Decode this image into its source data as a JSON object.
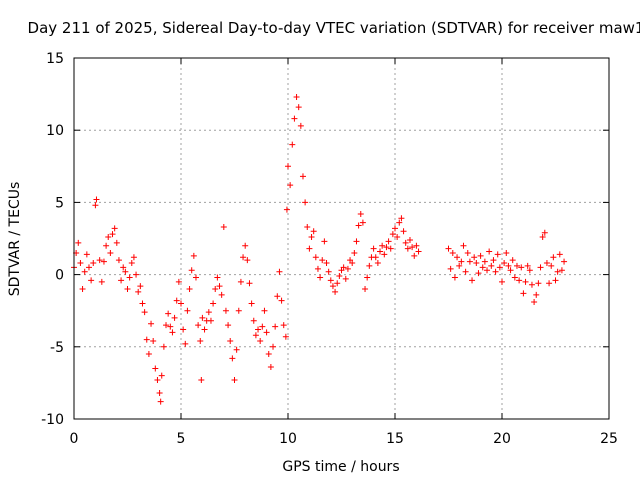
{
  "chart_data": {
    "type": "scatter",
    "title": "Day 211 of 2025, Sidereal Day-to-day VTEC variation (SDTVAR) for receiver maw1",
    "xlabel": "GPS time / hours",
    "ylabel": "SDTVAR / TECUs",
    "xlim": [
      0,
      25
    ],
    "ylim": [
      -10,
      15
    ],
    "x_ticks": [
      0,
      5,
      10,
      15,
      20,
      25
    ],
    "y_ticks": [
      -10,
      -5,
      0,
      5,
      10,
      15
    ],
    "grid": true,
    "marker": "+",
    "color": "#ff0000",
    "series": [
      {
        "name": "maw1",
        "points": [
          [
            0.0,
            0.5
          ],
          [
            0.1,
            1.5
          ],
          [
            0.2,
            2.2
          ],
          [
            0.3,
            0.8
          ],
          [
            0.4,
            -1.0
          ],
          [
            0.5,
            0.2
          ],
          [
            0.6,
            1.4
          ],
          [
            0.7,
            0.5
          ],
          [
            0.8,
            -0.4
          ],
          [
            0.9,
            0.8
          ],
          [
            1.0,
            4.8
          ],
          [
            1.05,
            5.2
          ],
          [
            1.2,
            1.0
          ],
          [
            1.3,
            -0.5
          ],
          [
            1.4,
            0.9
          ],
          [
            1.5,
            2.0
          ],
          [
            1.6,
            2.6
          ],
          [
            1.7,
            1.5
          ],
          [
            1.8,
            2.8
          ],
          [
            1.9,
            3.2
          ],
          [
            2.0,
            2.2
          ],
          [
            2.1,
            1.0
          ],
          [
            2.2,
            -0.4
          ],
          [
            2.3,
            0.5
          ],
          [
            2.4,
            0.2
          ],
          [
            2.5,
            -1.0
          ],
          [
            2.6,
            -0.2
          ],
          [
            2.7,
            0.8
          ],
          [
            2.8,
            1.2
          ],
          [
            2.9,
            0.0
          ],
          [
            3.0,
            -1.2
          ],
          [
            3.1,
            -0.8
          ],
          [
            3.2,
            -2.0
          ],
          [
            3.3,
            -2.6
          ],
          [
            3.4,
            -4.5
          ],
          [
            3.5,
            -5.5
          ],
          [
            3.6,
            -3.4
          ],
          [
            3.7,
            -4.6
          ],
          [
            3.8,
            -6.5
          ],
          [
            3.9,
            -7.3
          ],
          [
            4.0,
            -8.2
          ],
          [
            4.05,
            -8.8
          ],
          [
            4.1,
            -7.0
          ],
          [
            4.2,
            -5.0
          ],
          [
            4.3,
            -3.5
          ],
          [
            4.4,
            -2.7
          ],
          [
            4.5,
            -3.6
          ],
          [
            4.6,
            -4.0
          ],
          [
            4.7,
            -3.0
          ],
          [
            4.8,
            -1.8
          ],
          [
            4.9,
            -0.5
          ],
          [
            5.0,
            -2.0
          ],
          [
            5.1,
            -3.8
          ],
          [
            5.2,
            -4.8
          ],
          [
            5.3,
            -2.5
          ],
          [
            5.4,
            -1.0
          ],
          [
            5.5,
            0.3
          ],
          [
            5.6,
            1.3
          ],
          [
            5.7,
            -0.2
          ],
          [
            5.8,
            -3.5
          ],
          [
            5.9,
            -4.6
          ],
          [
            5.95,
            -7.3
          ],
          [
            6.0,
            -3.0
          ],
          [
            6.1,
            -3.8
          ],
          [
            6.2,
            -3.2
          ],
          [
            6.3,
            -2.6
          ],
          [
            6.4,
            -3.2
          ],
          [
            6.5,
            -2.0
          ],
          [
            6.6,
            -1.0
          ],
          [
            6.7,
            -0.2
          ],
          [
            6.8,
            -0.8
          ],
          [
            6.9,
            -1.4
          ],
          [
            7.0,
            3.3
          ],
          [
            7.1,
            -2.5
          ],
          [
            7.2,
            -3.5
          ],
          [
            7.3,
            -4.6
          ],
          [
            7.4,
            -5.8
          ],
          [
            7.5,
            -7.3
          ],
          [
            7.6,
            -5.2
          ],
          [
            7.7,
            -2.5
          ],
          [
            7.8,
            -0.5
          ],
          [
            7.9,
            1.2
          ],
          [
            8.0,
            2.0
          ],
          [
            8.1,
            1.0
          ],
          [
            8.2,
            -0.6
          ],
          [
            8.3,
            -2.0
          ],
          [
            8.4,
            -3.2
          ],
          [
            8.5,
            -4.2
          ],
          [
            8.6,
            -3.8
          ],
          [
            8.7,
            -4.6
          ],
          [
            8.8,
            -3.6
          ],
          [
            8.9,
            -2.5
          ],
          [
            9.0,
            -4.0
          ],
          [
            9.1,
            -5.5
          ],
          [
            9.2,
            -6.4
          ],
          [
            9.3,
            -5.0
          ],
          [
            9.4,
            -3.6
          ],
          [
            9.5,
            -1.5
          ],
          [
            9.6,
            0.2
          ],
          [
            9.7,
            -1.8
          ],
          [
            9.8,
            -3.5
          ],
          [
            9.9,
            -4.3
          ],
          [
            9.95,
            4.5
          ],
          [
            10.0,
            7.5
          ],
          [
            10.1,
            6.2
          ],
          [
            10.2,
            9.0
          ],
          [
            10.3,
            10.8
          ],
          [
            10.4,
            12.3
          ],
          [
            10.5,
            11.6
          ],
          [
            10.6,
            10.3
          ],
          [
            10.7,
            6.8
          ],
          [
            10.8,
            5.0
          ],
          [
            10.9,
            3.3
          ],
          [
            11.0,
            1.8
          ],
          [
            11.1,
            2.6
          ],
          [
            11.2,
            3.0
          ],
          [
            11.3,
            1.2
          ],
          [
            11.4,
            0.4
          ],
          [
            11.5,
            -0.2
          ],
          [
            11.6,
            1.0
          ],
          [
            11.7,
            2.3
          ],
          [
            11.8,
            0.8
          ],
          [
            11.9,
            0.2
          ],
          [
            12.0,
            -0.4
          ],
          [
            12.1,
            -0.8
          ],
          [
            12.2,
            -1.2
          ],
          [
            12.3,
            -0.6
          ],
          [
            12.4,
            -0.1
          ],
          [
            12.5,
            0.3
          ],
          [
            12.6,
            0.5
          ],
          [
            12.7,
            -0.3
          ],
          [
            12.8,
            0.4
          ],
          [
            12.9,
            1.0
          ],
          [
            13.0,
            0.8
          ],
          [
            13.1,
            1.5
          ],
          [
            13.2,
            2.3
          ],
          [
            13.3,
            3.4
          ],
          [
            13.4,
            4.2
          ],
          [
            13.5,
            3.6
          ],
          [
            13.6,
            -1.0
          ],
          [
            13.7,
            -0.2
          ],
          [
            13.8,
            0.6
          ],
          [
            13.9,
            1.2
          ],
          [
            14.0,
            1.8
          ],
          [
            14.1,
            1.2
          ],
          [
            14.2,
            0.8
          ],
          [
            14.3,
            1.6
          ],
          [
            14.4,
            2.0
          ],
          [
            14.5,
            1.4
          ],
          [
            14.6,
            1.9
          ],
          [
            14.7,
            2.3
          ],
          [
            14.8,
            1.8
          ],
          [
            14.9,
            2.8
          ],
          [
            15.0,
            3.2
          ],
          [
            15.1,
            2.6
          ],
          [
            15.2,
            3.6
          ],
          [
            15.3,
            3.9
          ],
          [
            15.4,
            3.0
          ],
          [
            15.5,
            2.2
          ],
          [
            15.6,
            1.8
          ],
          [
            15.7,
            2.4
          ],
          [
            15.8,
            1.9
          ],
          [
            15.9,
            1.3
          ],
          [
            16.0,
            2.0
          ],
          [
            16.1,
            1.6
          ],
          [
            17.5,
            1.8
          ],
          [
            17.6,
            0.4
          ],
          [
            17.7,
            1.5
          ],
          [
            17.8,
            -0.2
          ],
          [
            17.9,
            1.2
          ],
          [
            18.0,
            0.6
          ],
          [
            18.1,
            0.9
          ],
          [
            18.2,
            2.0
          ],
          [
            18.3,
            0.2
          ],
          [
            18.4,
            1.5
          ],
          [
            18.5,
            0.9
          ],
          [
            18.6,
            -0.4
          ],
          [
            18.7,
            1.2
          ],
          [
            18.8,
            0.8
          ],
          [
            18.9,
            0.1
          ],
          [
            19.0,
            1.3
          ],
          [
            19.1,
            0.5
          ],
          [
            19.2,
            0.9
          ],
          [
            19.3,
            0.3
          ],
          [
            19.4,
            1.6
          ],
          [
            19.5,
            0.6
          ],
          [
            19.6,
            1.0
          ],
          [
            19.7,
            0.2
          ],
          [
            19.8,
            1.4
          ],
          [
            19.9,
            0.5
          ],
          [
            20.0,
            -0.5
          ],
          [
            20.1,
            0.8
          ],
          [
            20.2,
            1.5
          ],
          [
            20.3,
            0.6
          ],
          [
            20.4,
            0.3
          ],
          [
            20.5,
            1.0
          ],
          [
            20.6,
            -0.2
          ],
          [
            20.7,
            0.6
          ],
          [
            20.8,
            -0.4
          ],
          [
            20.9,
            0.5
          ],
          [
            21.0,
            -1.3
          ],
          [
            21.1,
            -0.5
          ],
          [
            21.2,
            0.6
          ],
          [
            21.3,
            0.3
          ],
          [
            21.4,
            -0.7
          ],
          [
            21.5,
            -1.9
          ],
          [
            21.6,
            -1.4
          ],
          [
            21.7,
            -0.6
          ],
          [
            21.8,
            0.5
          ],
          [
            21.9,
            2.6
          ],
          [
            22.0,
            2.9
          ],
          [
            22.1,
            0.8
          ],
          [
            22.2,
            -0.6
          ],
          [
            22.3,
            0.6
          ],
          [
            22.4,
            1.2
          ],
          [
            22.5,
            -0.4
          ],
          [
            22.6,
            0.2
          ],
          [
            22.7,
            1.4
          ],
          [
            22.8,
            0.3
          ],
          [
            22.9,
            0.9
          ]
        ]
      }
    ]
  }
}
